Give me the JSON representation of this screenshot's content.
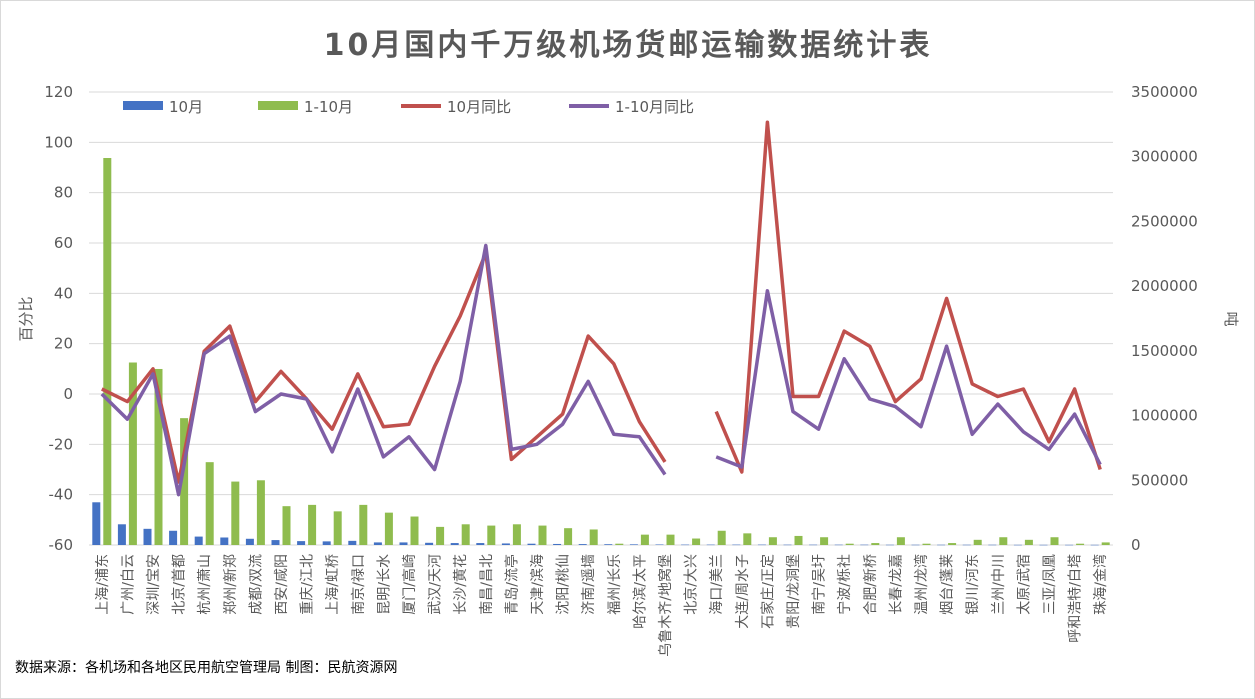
{
  "chart_data": {
    "type": "bar",
    "title": "10月国内千万级机场货邮运输数据统计表",
    "ylabel_left": "百分比",
    "ylabel_right": "吨",
    "ylim_left": [
      -60,
      120
    ],
    "ylim_right": [
      0,
      3500000
    ],
    "yticks_left": [
      -60,
      -40,
      -20,
      0,
      20,
      40,
      60,
      80,
      100,
      120
    ],
    "yticks_right": [
      0,
      500000,
      1000000,
      1500000,
      2000000,
      2500000,
      3000000,
      3500000
    ],
    "legend_position": "top",
    "grid": "horizontal",
    "source_text": "数据来源：各机场和各地区民用航空管理局 制图：民航资源网",
    "categories": [
      "上海/浦东",
      "广州/白云",
      "深圳/宝安",
      "北京/首都",
      "杭州/萧山",
      "郑州/新郑",
      "成都/双流",
      "西安/咸阳",
      "重庆/江北",
      "上海/虹桥",
      "南京/禄口",
      "昆明/长水",
      "厦门/高崎",
      "武汉/天河",
      "长沙/黄花",
      "南昌/昌北",
      "青岛/流亭",
      "天津/滨海",
      "沈阳/桃仙",
      "济南/遥墙",
      "福州/长乐",
      "哈尔滨/太平",
      "乌鲁木齐/地窝堡",
      "北京/大兴",
      "海口/美兰",
      "大连/周水子",
      "石家庄/正定",
      "贵阳/龙洞堡",
      "南宁/吴圩",
      "宁波/栎社",
      "合肥/新桥",
      "长春/龙嘉",
      "温州/龙湾",
      "烟台/蓬莱",
      "银川/河东",
      "兰州/中川",
      "太原/武宿",
      "三亚/凤凰",
      "呼和浩特/白塔",
      "珠海/金湾"
    ],
    "series": [
      {
        "name": "10月",
        "axis": "right",
        "kind": "bar",
        "color": "#4472c4",
        "values": [
          330000,
          160000,
          125000,
          110000,
          65000,
          58000,
          48000,
          38000,
          30000,
          28000,
          32000,
          20000,
          20000,
          17000,
          15000,
          15000,
          12000,
          10000,
          8000,
          7000,
          6000,
          5000,
          4000,
          3000,
          3000,
          3000,
          3000,
          2500,
          2500,
          2500,
          2500,
          2000,
          2000,
          2000,
          2000,
          2000,
          1500,
          1500,
          1500,
          1500
        ]
      },
      {
        "name": "1-10月",
        "axis": "right",
        "kind": "bar",
        "color": "#8fbc4e",
        "values": [
          2990000,
          1410000,
          1360000,
          980000,
          640000,
          490000,
          500000,
          300000,
          310000,
          260000,
          310000,
          250000,
          220000,
          140000,
          160000,
          150000,
          160000,
          150000,
          130000,
          120000,
          10000,
          80000,
          80000,
          50000,
          110000,
          90000,
          60000,
          70000,
          60000,
          10000,
          15000,
          60000,
          10000,
          15000,
          40000,
          60000,
          40000,
          60000,
          10000,
          20000
        ]
      },
      {
        "name": "10月同比",
        "axis": "left",
        "kind": "line",
        "color": "#c0504d",
        "values": [
          2,
          -3,
          10,
          -35,
          17,
          27,
          -3,
          9,
          -2,
          -14,
          8,
          -13,
          -12,
          11,
          31,
          56,
          -26,
          -17,
          -8,
          23,
          12,
          -11,
          -27,
          null,
          -7,
          -31,
          108,
          -1,
          -1,
          25,
          19,
          -3,
          6,
          38,
          4,
          -1,
          2,
          -19,
          2,
          -30
        ]
      },
      {
        "name": "1-10月同比",
        "axis": "left",
        "kind": "line",
        "color": "#7f5fa6",
        "values": [
          0,
          -10,
          8,
          -40,
          16,
          23,
          -7,
          0,
          -2,
          -23,
          2,
          -25,
          -17,
          -30,
          5,
          59,
          -22,
          -20,
          -12,
          5,
          -16,
          -17,
          -32,
          null,
          -25,
          -29,
          41,
          -7,
          -14,
          14,
          -2,
          -5,
          -13,
          19,
          -16,
          -4,
          -15,
          -22,
          -8,
          -28
        ]
      }
    ]
  }
}
